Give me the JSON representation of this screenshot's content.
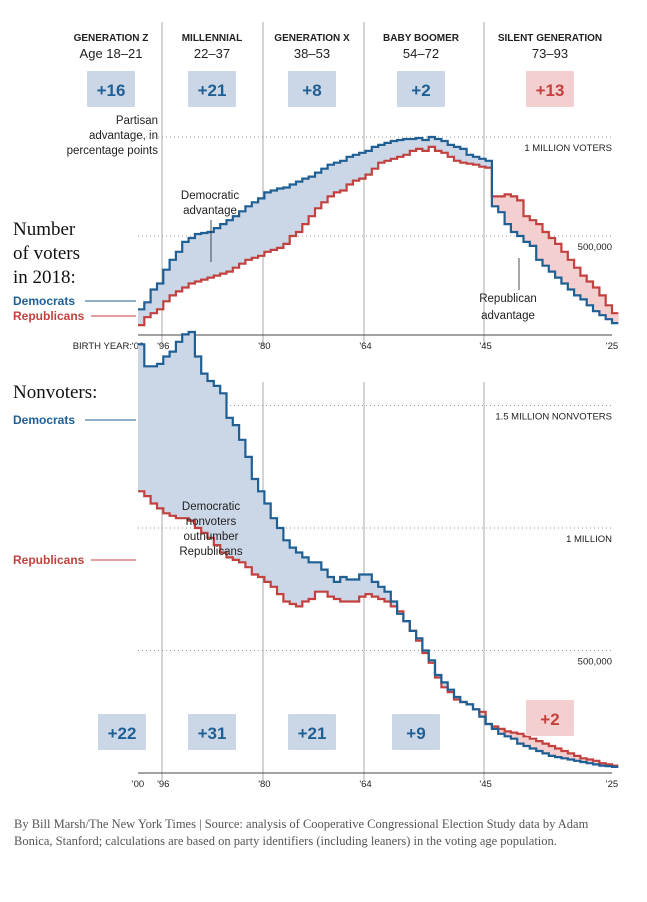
{
  "colors": {
    "democrat": "#1f5f94",
    "republican": "#c2413f",
    "dem_fill": "#cbd7e7",
    "rep_fill": "#f3cfcf",
    "gridline": "#999999",
    "divider": "#aaaaaa"
  },
  "generations": [
    {
      "name": "GENERATION Z",
      "ages": "Age 18–21"
    },
    {
      "name": "MILLENNIAL",
      "ages": "22–37"
    },
    {
      "name": "GENERATION X",
      "ages": "38–53"
    },
    {
      "name": "BABY BOOMER",
      "ages": "54–72"
    },
    {
      "name": "SILENT GENERATION",
      "ages": "73–93"
    }
  ],
  "chart_data": [
    {
      "type": "area",
      "title": "Number of voters in 2018:",
      "title_lines": [
        "Number",
        "of voters",
        "in 2018:"
      ],
      "x_axis_label": "BIRTH YEAR:",
      "x_ticks": [
        "'00",
        "'96",
        "'80",
        "'64",
        "'45",
        "'25"
      ],
      "x_tick_years": [
        2000,
        1996,
        1980,
        1964,
        1945,
        1925
      ],
      "ylim": [
        0,
        1000000
      ],
      "y_reference_lines": [
        {
          "value": 1000000,
          "label": "1 MILLION VOTERS"
        },
        {
          "value": 500000,
          "label": "500,000"
        }
      ],
      "advantage_note": "Partisan advantage, in percentage points",
      "advantage_note_lines": [
        "Partisan",
        "advantage, in",
        "percentage points"
      ],
      "advantages": [
        {
          "generation": "GENERATION Z",
          "label": "+16",
          "party": "democrat"
        },
        {
          "generation": "MILLENNIAL",
          "label": "+21",
          "party": "democrat"
        },
        {
          "generation": "GENERATION X",
          "label": "+8",
          "party": "democrat"
        },
        {
          "generation": "BABY BOOMER",
          "label": "+2",
          "party": "democrat"
        },
        {
          "generation": "SILENT GENERATION",
          "label": "+13",
          "party": "republican"
        }
      ],
      "annotations": [
        {
          "text": "Democratic advantage",
          "lines": [
            "Democratic",
            "advantage"
          ]
        },
        {
          "text": "Republican advantage",
          "lines": [
            "Republican",
            "advantage"
          ]
        }
      ],
      "x": [
        2000,
        1999,
        1998,
        1997,
        1996,
        1995,
        1994,
        1993,
        1992,
        1991,
        1990,
        1989,
        1988,
        1987,
        1986,
        1985,
        1984,
        1983,
        1982,
        1981,
        1980,
        1979,
        1978,
        1977,
        1976,
        1975,
        1974,
        1973,
        1972,
        1971,
        1970,
        1969,
        1968,
        1967,
        1966,
        1965,
        1964,
        1963,
        1962,
        1961,
        1960,
        1959,
        1958,
        1957,
        1956,
        1955,
        1954,
        1953,
        1952,
        1951,
        1950,
        1949,
        1948,
        1947,
        1946,
        1945,
        1944,
        1943,
        1942,
        1941,
        1940,
        1939,
        1938,
        1937,
        1936,
        1935,
        1934,
        1933,
        1932,
        1931,
        1930,
        1929,
        1928,
        1927,
        1926,
        1925
      ],
      "series": [
        {
          "name": "Democrats",
          "party": "democrat",
          "values": [
            130000,
            165000,
            230000,
            260000,
            330000,
            380000,
            420000,
            470000,
            490000,
            510000,
            515000,
            520000,
            540000,
            560000,
            580000,
            600000,
            625000,
            650000,
            670000,
            690000,
            720000,
            730000,
            740000,
            745000,
            760000,
            775000,
            790000,
            800000,
            820000,
            840000,
            860000,
            870000,
            880000,
            900000,
            910000,
            920000,
            930000,
            950000,
            960000,
            970000,
            980000,
            985000,
            990000,
            990000,
            995000,
            985000,
            1000000,
            990000,
            980000,
            960000,
            950000,
            940000,
            910000,
            900000,
            890000,
            880000,
            650000,
            620000,
            560000,
            520000,
            500000,
            470000,
            450000,
            380000,
            350000,
            320000,
            290000,
            260000,
            230000,
            200000,
            180000,
            150000,
            120000,
            100000,
            80000,
            60000
          ]
        },
        {
          "name": "Republicans",
          "party": "republican",
          "values": [
            50000,
            90000,
            110000,
            130000,
            170000,
            200000,
            220000,
            240000,
            260000,
            270000,
            280000,
            290000,
            300000,
            310000,
            320000,
            340000,
            360000,
            380000,
            390000,
            400000,
            420000,
            430000,
            440000,
            460000,
            500000,
            520000,
            560000,
            600000,
            640000,
            670000,
            700000,
            720000,
            730000,
            760000,
            780000,
            790000,
            810000,
            840000,
            870000,
            880000,
            890000,
            900000,
            910000,
            930000,
            940000,
            930000,
            950000,
            930000,
            920000,
            900000,
            880000,
            870000,
            865000,
            860000,
            850000,
            845000,
            700000,
            700000,
            710000,
            700000,
            680000,
            600000,
            580000,
            560000,
            520000,
            490000,
            460000,
            420000,
            380000,
            340000,
            300000,
            270000,
            240000,
            200000,
            150000,
            110000
          ]
        }
      ]
    },
    {
      "type": "area",
      "title": "Nonvoters:",
      "x_ticks": [
        "'00",
        "'96",
        "'80",
        "'64",
        "'45",
        "'25"
      ],
      "x_tick_years": [
        2000,
        1996,
        1980,
        1964,
        1945,
        1925
      ],
      "ylim": [
        0,
        2000000
      ],
      "y_reference_lines": [
        {
          "value": 1500000,
          "label": "1.5 MILLION NONVOTERS"
        },
        {
          "value": 1000000,
          "label": "1 MILLION"
        },
        {
          "value": 500000,
          "label": "500,000"
        }
      ],
      "advantages": [
        {
          "generation": "GENERATION Z",
          "label": "+22",
          "party": "democrat"
        },
        {
          "generation": "MILLENNIAL",
          "label": "+31",
          "party": "democrat"
        },
        {
          "generation": "GENERATION X",
          "label": "+21",
          "party": "democrat"
        },
        {
          "generation": "BABY BOOMER",
          "label": "+9",
          "party": "democrat"
        },
        {
          "generation": "SILENT GENERATION",
          "label": "+2",
          "party": "republican"
        }
      ],
      "annotations": [
        {
          "text": "Democratic nonvoters outnumber Republicans",
          "lines": [
            "Democratic",
            "nonvoters",
            "outnumber",
            "Republicans"
          ]
        }
      ],
      "x": [
        2000,
        1999,
        1998,
        1997,
        1996,
        1995,
        1994,
        1993,
        1992,
        1991,
        1990,
        1989,
        1988,
        1987,
        1986,
        1985,
        1984,
        1983,
        1982,
        1981,
        1980,
        1979,
        1978,
        1977,
        1976,
        1975,
        1974,
        1973,
        1972,
        1971,
        1970,
        1969,
        1968,
        1967,
        1966,
        1965,
        1964,
        1963,
        1962,
        1961,
        1960,
        1959,
        1958,
        1957,
        1956,
        1955,
        1954,
        1953,
        1952,
        1951,
        1950,
        1949,
        1948,
        1947,
        1946,
        1945,
        1944,
        1943,
        1942,
        1941,
        1940,
        1939,
        1938,
        1937,
        1936,
        1935,
        1934,
        1933,
        1932,
        1931,
        1930,
        1929,
        1928,
        1927,
        1926,
        1925
      ],
      "series": [
        {
          "name": "Democrats",
          "party": "democrat",
          "values": [
            1750000,
            1660000,
            1660000,
            1670000,
            1700000,
            1720000,
            1760000,
            1790000,
            1800000,
            1700000,
            1630000,
            1600000,
            1580000,
            1550000,
            1450000,
            1420000,
            1360000,
            1290000,
            1200000,
            1150000,
            1100000,
            1040000,
            1000000,
            950000,
            920000,
            900000,
            880000,
            860000,
            860000,
            830000,
            800000,
            780000,
            800000,
            790000,
            790000,
            810000,
            810000,
            780000,
            760000,
            740000,
            700000,
            650000,
            620000,
            580000,
            550000,
            500000,
            460000,
            400000,
            370000,
            340000,
            310000,
            290000,
            280000,
            260000,
            230000,
            200000,
            180000,
            160000,
            150000,
            140000,
            120000,
            110000,
            100000,
            90000,
            80000,
            70000,
            65000,
            60000,
            55000,
            50000,
            45000,
            40000,
            35000,
            30000,
            28000,
            25000
          ]
        },
        {
          "name": "Republicans",
          "party": "republican",
          "values": [
            1150000,
            1130000,
            1100000,
            1080000,
            1060000,
            1050000,
            1040000,
            1040000,
            1030000,
            1000000,
            980000,
            960000,
            930000,
            900000,
            880000,
            870000,
            860000,
            840000,
            810000,
            800000,
            780000,
            760000,
            730000,
            700000,
            690000,
            680000,
            700000,
            710000,
            740000,
            740000,
            720000,
            710000,
            700000,
            700000,
            700000,
            720000,
            730000,
            720000,
            710000,
            700000,
            680000,
            660000,
            620000,
            580000,
            540000,
            490000,
            450000,
            390000,
            350000,
            330000,
            300000,
            290000,
            280000,
            260000,
            250000,
            200000,
            190000,
            180000,
            170000,
            165000,
            160000,
            150000,
            140000,
            130000,
            120000,
            110000,
            100000,
            90000,
            80000,
            70000,
            60000,
            55000,
            50000,
            40000,
            35000,
            30000
          ]
        }
      ]
    }
  ],
  "credit": "By Bill Marsh/The New York Times | Source: analysis of Cooperative Congressional Election Study data by Adam Bonica, Stanford; calculations are based on party identifiers (including leaners) in the voting age population."
}
